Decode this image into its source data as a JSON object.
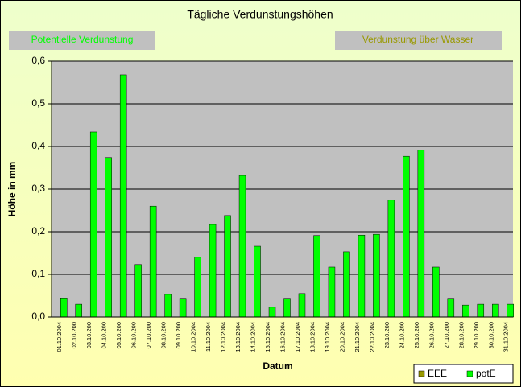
{
  "chart_data": {
    "type": "bar",
    "title": "Tägliche Verdunstungshöhen",
    "annotations": [
      "Potentielle Verdunstung",
      "Verdunstung über Wasser"
    ],
    "ylabel": "Höhe in mm",
    "xlabel": "Datum",
    "categories": [
      "01.10.2004",
      "02.10.200",
      "03.10.200",
      "04.10.200",
      "05.10.200",
      "06.10.200",
      "07.10.200",
      "08.10.200",
      "09.10.200",
      "10.10.2004",
      "11.10.2004",
      "12.10.2004",
      "13.10.2004",
      "14.10.2004",
      "15.10.2004",
      "16.10.2004",
      "17.10.2004",
      "18.10.2004",
      "19.10.2004",
      "20.10.2004",
      "21.10.2004",
      "22.10.2004",
      "23.10.200",
      "24.10.200",
      "25.10.200",
      "26.10.200",
      "27.10.200",
      "28.10.200",
      "29.10.200",
      "30.10.200",
      "31.10.2004"
    ],
    "series": [
      {
        "name": "EEE",
        "color": "#999900",
        "values": [
          null,
          null,
          null,
          null,
          null,
          null,
          null,
          null,
          null,
          null,
          null,
          null,
          null,
          null,
          null,
          null,
          null,
          null,
          null,
          null,
          null,
          null,
          null,
          null,
          null,
          null,
          null,
          null,
          null,
          null,
          null
        ]
      },
      {
        "name": "potE",
        "color": "#00ff00",
        "values": [
          0.043,
          0.03,
          0.434,
          0.374,
          0.568,
          0.123,
          0.26,
          0.053,
          0.042,
          0.14,
          0.217,
          0.238,
          0.332,
          0.166,
          0.023,
          0.042,
          0.055,
          0.191,
          0.117,
          0.153,
          0.192,
          0.194,
          0.274,
          0.377,
          0.391,
          0.117,
          0.042,
          0.028,
          0.03,
          0.03,
          0.03
        ]
      }
    ],
    "ylim": [
      0,
      0.6
    ],
    "yticks": [
      {
        "value": 0,
        "label": "0,0"
      },
      {
        "value": 0.1,
        "label": "0,1"
      },
      {
        "value": 0.2,
        "label": "0,2"
      },
      {
        "value": 0.3,
        "label": "0,3"
      },
      {
        "value": 0.4,
        "label": "0,4"
      },
      {
        "value": 0.5,
        "label": "0,5"
      },
      {
        "value": 0.6,
        "label": "0,6"
      }
    ],
    "grid": true,
    "legend": "bottom-right"
  }
}
